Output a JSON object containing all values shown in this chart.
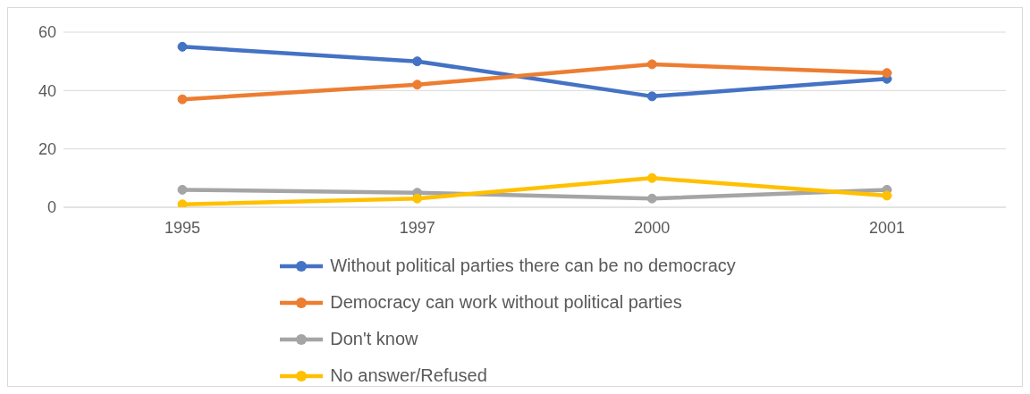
{
  "chart_data": {
    "type": "line",
    "categories": [
      "1995",
      "1997",
      "2000",
      "2001"
    ],
    "series": [
      {
        "name": "Without political parties there can be no democracy",
        "color": "#4472c4",
        "values": [
          55,
          50,
          38,
          44
        ]
      },
      {
        "name": "Democracy can work without political parties",
        "color": "#ed7d31",
        "values": [
          37,
          42,
          49,
          46
        ]
      },
      {
        "name": "Don't know",
        "color": "#a5a5a5",
        "values": [
          6,
          5,
          3,
          6
        ]
      },
      {
        "name": "No answer/Refused",
        "color": "#ffc000",
        "values": [
          1,
          3,
          10,
          4
        ]
      }
    ],
    "ylim": [
      0,
      60
    ],
    "yticks": [
      0,
      20,
      40,
      60
    ],
    "grid": "y",
    "legend": "bottom",
    "marker": "circle",
    "line_style": "solid"
  }
}
